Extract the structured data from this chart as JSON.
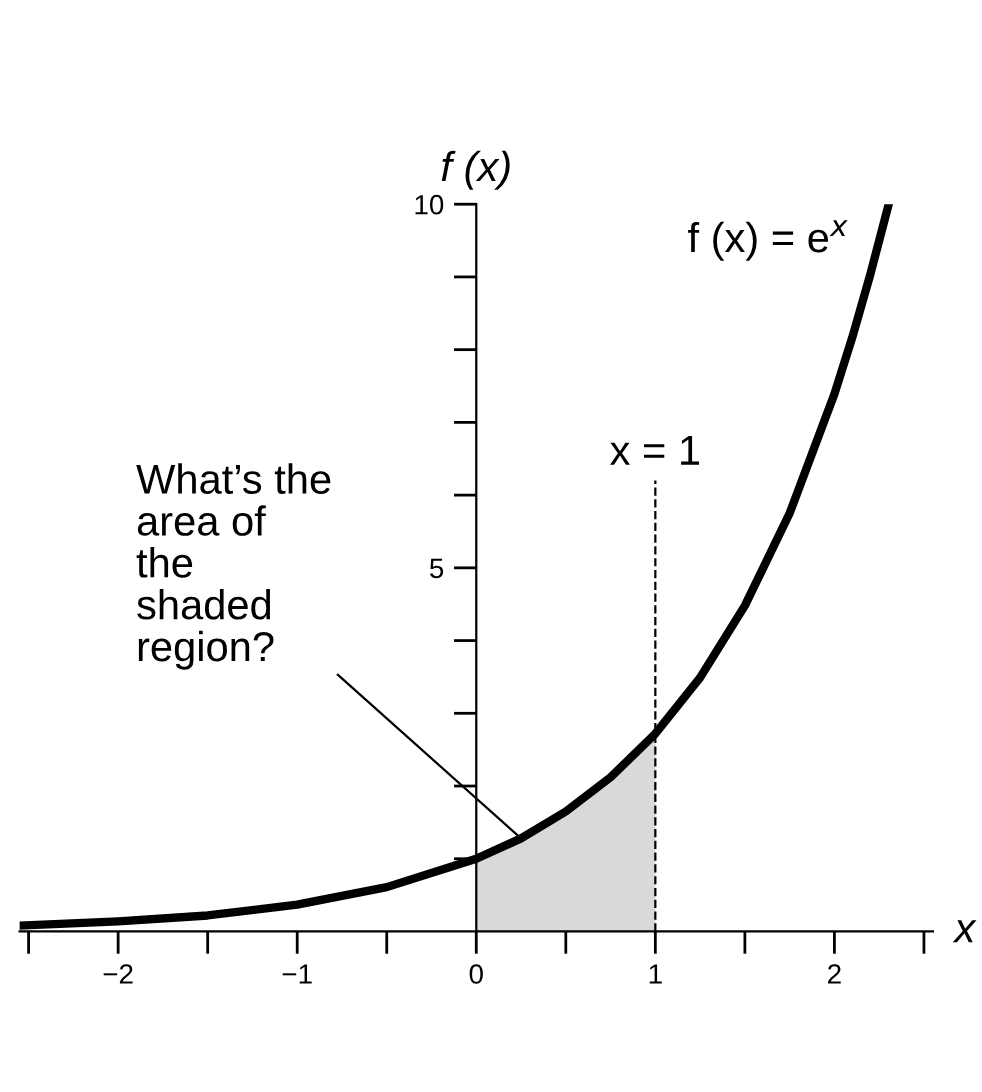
{
  "chart_data": {
    "type": "line",
    "xlabel": "x",
    "ylabel": "f (x)",
    "series": [
      {
        "type": "area",
        "color": "#d9d9d9",
        "x": [
          0,
          0.25,
          0.5,
          0.75,
          1
        ],
        "values": [
          1,
          1.28,
          1.65,
          2.12,
          2.72
        ]
      },
      {
        "color": "#000000",
        "x": [
          -2.55,
          -2,
          -1.5,
          -1,
          -0.5,
          0,
          0.25,
          0.5,
          0.75,
          1,
          1.25,
          1.5,
          1.75,
          2,
          2.1,
          2.2,
          2.3
        ],
        "values": [
          0.08,
          0.14,
          0.22,
          0.37,
          0.61,
          1,
          1.28,
          1.65,
          2.12,
          2.72,
          3.49,
          4.48,
          5.75,
          7.39,
          8.17,
          9.03,
          9.97
        ]
      }
    ],
    "xlim": [
      -2.55,
      2.55
    ],
    "ylim": [
      0,
      10
    ],
    "xticks": [
      {
        "value": -2.5,
        "label": null
      },
      {
        "value": -2,
        "label": "−2"
      },
      {
        "value": -1.5,
        "label": null
      },
      {
        "value": -1,
        "label": "−1"
      },
      {
        "value": -0.5,
        "label": null
      },
      0,
      {
        "value": 0.5,
        "label": null
      },
      1,
      {
        "value": 1.5,
        "label": null
      },
      2,
      {
        "value": 2.5,
        "label": null
      }
    ],
    "yticks": [
      {
        "value": 1,
        "label": null
      },
      {
        "value": 2,
        "label": null
      },
      {
        "value": 3,
        "label": null
      },
      {
        "value": 4,
        "label": null
      },
      5,
      {
        "value": 6,
        "label": null
      },
      {
        "value": 7,
        "label": null
      },
      {
        "value": 8,
        "label": null
      },
      {
        "value": 9,
        "label": null
      },
      10
    ],
    "ref_lines": [
      {
        "axis": "x",
        "value": 1,
        "label": "x = 1",
        "line_style": "dashed",
        "color": "#000000"
      }
    ],
    "annotations": [
      "f (x) = e$^{x}$",
      {
        "text": "What’s the\narea of\nthe\nshaded\nregion?",
        "x": 0.25,
        "y": 1.28
      }
    ],
    "grid": false,
    "legend": false
  }
}
